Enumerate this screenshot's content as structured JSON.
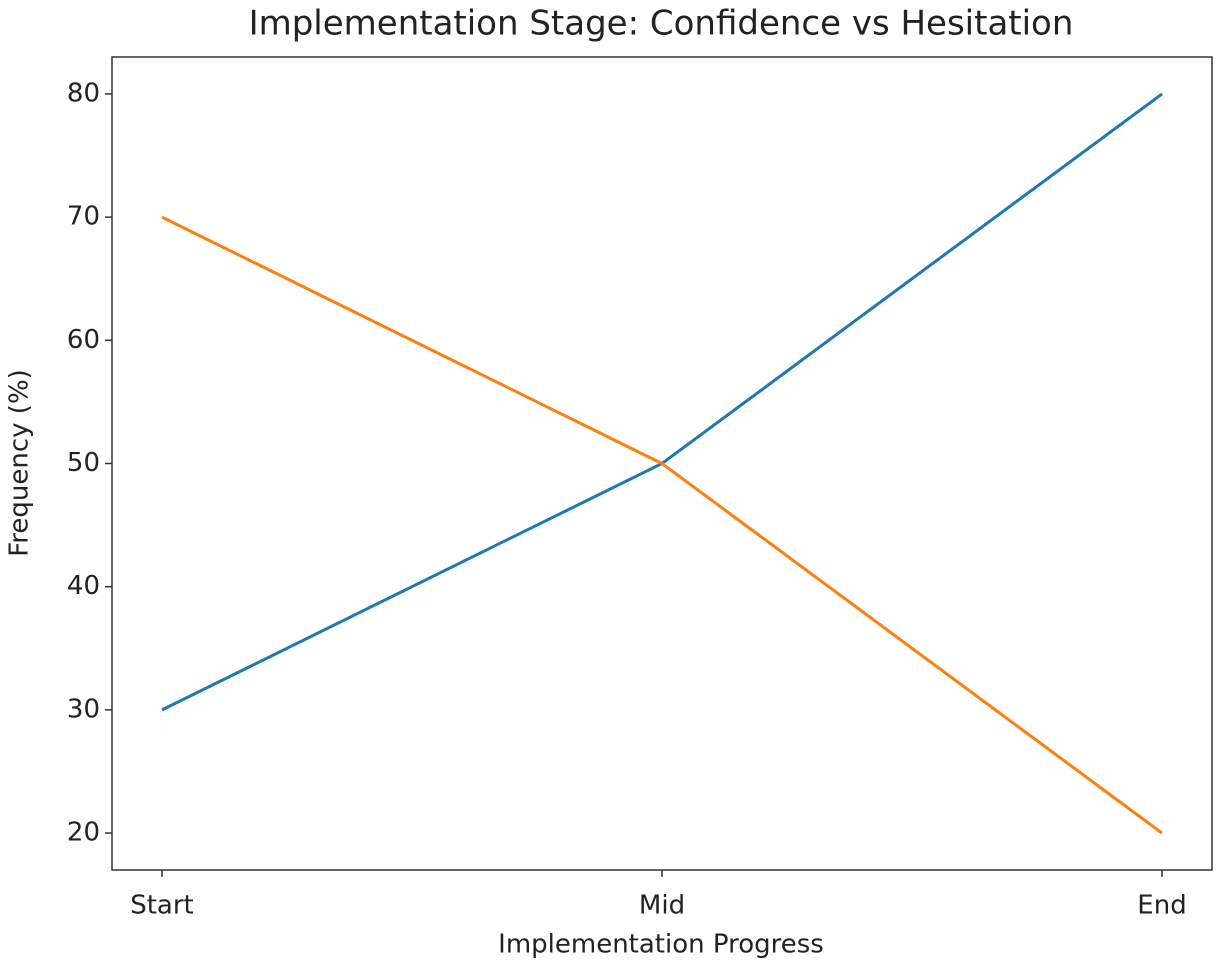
{
  "chart_data": {
    "type": "line",
    "title": "Implementation Stage: Confidence vs Hesitation",
    "x_label": "Implementation Progress",
    "y_label": "Frequency (%)",
    "categories": [
      "Start",
      "Mid",
      "End"
    ],
    "series": [
      {
        "color": "#1f77b4",
        "values": [
          30,
          50,
          80
        ]
      },
      {
        "color": "#ff7f0e",
        "values": [
          70,
          50,
          20
        ]
      }
    ],
    "ylim": [
      17,
      83
    ],
    "yticks": [
      20,
      30,
      40,
      50,
      60,
      70,
      80
    ],
    "grid": false
  }
}
